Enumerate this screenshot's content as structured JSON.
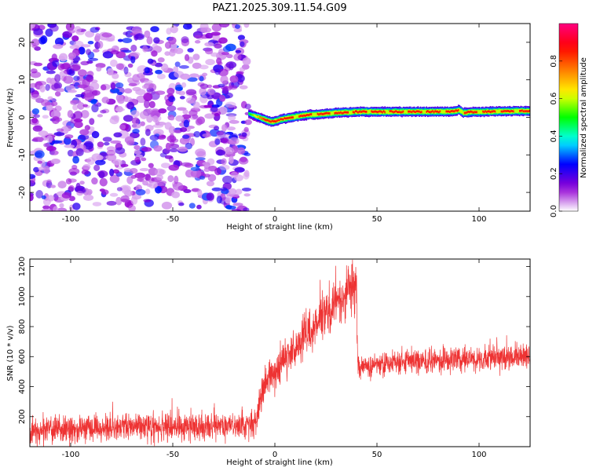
{
  "chart_data": [
    {
      "type": "heatmap",
      "title": "PAZ1.2025.309.11.54.G09",
      "xlabel": "Height of straight line (km)",
      "ylabel": "Frequency (Hz)",
      "xlim": [
        -120,
        125
      ],
      "ylim": [
        -25,
        25
      ],
      "xticks": [
        "-100",
        "-50",
        "0",
        "50",
        "100"
      ],
      "yticks": [
        "-20",
        "-10",
        "0",
        "10",
        "20"
      ],
      "colorbar": {
        "label": "Normalized spectral amplitude",
        "range": [
          0,
          1
        ],
        "ticks": [
          "0.0",
          "0.2",
          "0.4",
          "0.6",
          "0.8"
        ],
        "colors": [
          "#ffffff",
          "#9400d3",
          "#0000ff",
          "#00ffff",
          "#00ff00",
          "#ffff00",
          "#ff7f00",
          "#ff0000",
          "#ff0080"
        ]
      },
      "noise_region_x": [
        -120,
        -13
      ],
      "noise_amplitude": 0.15,
      "ridge": {
        "x": [
          -13,
          -8,
          -4,
          -2,
          0,
          2,
          5,
          10,
          15,
          20,
          25,
          30,
          40,
          50,
          60,
          70,
          80,
          88,
          90,
          92,
          95,
          100,
          110,
          120,
          125
        ],
        "f": [
          1.0,
          0.0,
          -0.8,
          -1.2,
          -1.0,
          -0.6,
          -0.3,
          0.2,
          0.6,
          0.8,
          1.0,
          1.2,
          1.5,
          1.5,
          1.5,
          1.5,
          1.5,
          1.6,
          2.0,
          1.2,
          1.4,
          1.5,
          1.6,
          1.7,
          1.7
        ],
        "amplitude": 0.85
      }
    },
    {
      "type": "line",
      "xlabel": "Height of straight line (km)",
      "ylabel": "SNR (10 * v/v)",
      "xlim": [
        -120,
        125
      ],
      "ylim": [
        0,
        1250
      ],
      "xticks": [
        "-100",
        "-50",
        "0",
        "50",
        "100"
      ],
      "yticks": [
        "200",
        "400",
        "600",
        "800",
        "1000",
        "1200"
      ],
      "color": "#ee3333",
      "series": [
        {
          "name": "SNR",
          "x": [
            -120,
            -100,
            -80,
            -60,
            -40,
            -25,
            -15,
            -9,
            -7,
            -4,
            0,
            10,
            20,
            30,
            39,
            40,
            40.5,
            50,
            60,
            70,
            80,
            90,
            100,
            110,
            120,
            125
          ],
          "mean": [
            100,
            120,
            125,
            130,
            135,
            140,
            150,
            160,
            320,
            430,
            500,
            650,
            820,
            950,
            1050,
            1100,
            540,
            550,
            560,
            570,
            570,
            580,
            580,
            590,
            600,
            610
          ],
          "spread": [
            75,
            80,
            80,
            85,
            85,
            85,
            85,
            85,
            90,
            100,
            110,
            120,
            130,
            140,
            150,
            150,
            70,
            70,
            70,
            75,
            75,
            75,
            75,
            80,
            80,
            80
          ]
        }
      ]
    }
  ]
}
